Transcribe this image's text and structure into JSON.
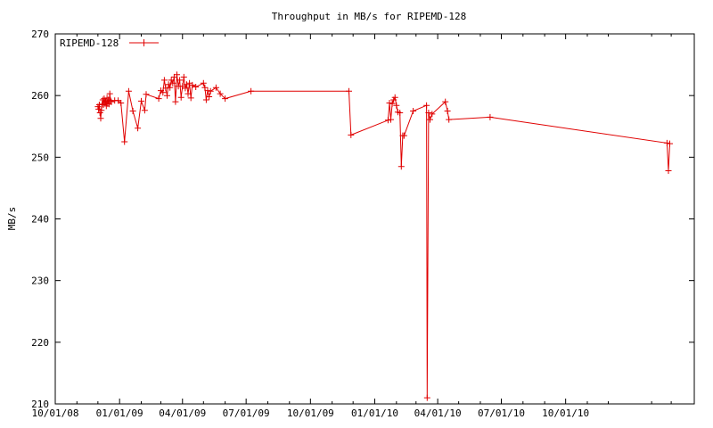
{
  "chart_data": {
    "type": "line",
    "title": "Throughput in MB/s for RIPEMD-128",
    "xlabel": "",
    "ylabel": "MB/s",
    "x_type": "date",
    "xlim": [
      "2008-10-01",
      "2011-04-03"
    ],
    "ylim": [
      210,
      270
    ],
    "yticks": [
      210,
      220,
      230,
      240,
      250,
      260,
      270
    ],
    "xticks": [
      {
        "date": "2008-10-01",
        "label": "10/01/08"
      },
      {
        "date": "2009-01-01",
        "label": "01/01/09"
      },
      {
        "date": "2009-04-01",
        "label": "04/01/09"
      },
      {
        "date": "2009-07-01",
        "label": "07/01/09"
      },
      {
        "date": "2009-10-01",
        "label": "10/01/09"
      },
      {
        "date": "2010-01-01",
        "label": "01/01/10"
      },
      {
        "date": "2010-04-01",
        "label": "04/01/10"
      },
      {
        "date": "2010-07-01",
        "label": "07/01/10"
      },
      {
        "date": "2010-10-01",
        "label": "10/01/10"
      }
    ],
    "grid": false,
    "legend": "top-left",
    "series": [
      {
        "name": "RIPEMD-128",
        "color": "#e00000",
        "marker": "plus",
        "points": [
          [
            "2008-12-01",
            258.2
          ],
          [
            "2008-12-02",
            257.8
          ],
          [
            "2008-12-03",
            258.5
          ],
          [
            "2008-12-04",
            257.2
          ],
          [
            "2008-12-05",
            256.3
          ],
          [
            "2008-12-06",
            257.6
          ],
          [
            "2008-12-07",
            258.6
          ],
          [
            "2008-12-08",
            259.3
          ],
          [
            "2008-12-09",
            258.5
          ],
          [
            "2008-12-10",
            259.5
          ],
          [
            "2008-12-11",
            258.9
          ],
          [
            "2008-12-12",
            259.1
          ],
          [
            "2008-12-13",
            258.3
          ],
          [
            "2008-12-14",
            259.6
          ],
          [
            "2008-12-15",
            258.7
          ],
          [
            "2008-12-16",
            259.3
          ],
          [
            "2008-12-17",
            258.6
          ],
          [
            "2008-12-18",
            260.3
          ],
          [
            "2008-12-19",
            259.2
          ],
          [
            "2008-12-20",
            259.0
          ],
          [
            "2008-12-25",
            259.2
          ],
          [
            "2008-12-30",
            259.2
          ],
          [
            "2009-01-03",
            258.8
          ],
          [
            "2009-01-08",
            252.5
          ],
          [
            "2009-01-14",
            260.7
          ],
          [
            "2009-01-20",
            257.5
          ],
          [
            "2009-01-27",
            254.7
          ],
          [
            "2009-02-01",
            259.1
          ],
          [
            "2009-02-06",
            257.6
          ],
          [
            "2009-02-08",
            260.2
          ],
          [
            "2009-02-26",
            259.5
          ],
          [
            "2009-03-01",
            260.8
          ],
          [
            "2009-03-04",
            260.5
          ],
          [
            "2009-03-06",
            262.5
          ],
          [
            "2009-03-08",
            261.2
          ],
          [
            "2009-03-10",
            260.0
          ],
          [
            "2009-03-12",
            261.8
          ],
          [
            "2009-03-14",
            261.3
          ],
          [
            "2009-03-16",
            262.5
          ],
          [
            "2009-03-18",
            262.0
          ],
          [
            "2009-03-20",
            263.0
          ],
          [
            "2009-03-22",
            259.0
          ],
          [
            "2009-03-24",
            263.4
          ],
          [
            "2009-03-26",
            261.5
          ],
          [
            "2009-03-28",
            262.5
          ],
          [
            "2009-03-30",
            259.7
          ],
          [
            "2009-04-01",
            261.5
          ],
          [
            "2009-04-03",
            263.0
          ],
          [
            "2009-04-05",
            261.2
          ],
          [
            "2009-04-07",
            261.8
          ],
          [
            "2009-04-09",
            260.3
          ],
          [
            "2009-04-11",
            262.0
          ],
          [
            "2009-04-13",
            259.6
          ],
          [
            "2009-04-15",
            261.7
          ],
          [
            "2009-04-20",
            261.4
          ],
          [
            "2009-05-01",
            262.0
          ],
          [
            "2009-05-03",
            261.3
          ],
          [
            "2009-05-05",
            259.3
          ],
          [
            "2009-05-07",
            260.8
          ],
          [
            "2009-05-09",
            259.8
          ],
          [
            "2009-05-11",
            260.7
          ],
          [
            "2009-05-19",
            261.3
          ],
          [
            "2009-05-25",
            260.3
          ],
          [
            "2009-06-01",
            259.5
          ],
          [
            "2009-07-08",
            260.7
          ],
          [
            "2009-11-25",
            260.7
          ],
          [
            "2009-11-28",
            253.6
          ],
          [
            "2010-01-20",
            256.0
          ],
          [
            "2010-01-22",
            258.8
          ],
          [
            "2010-01-24",
            256.1
          ],
          [
            "2010-01-26",
            258.7
          ],
          [
            "2010-01-28",
            259.3
          ],
          [
            "2010-01-30",
            259.7
          ],
          [
            "2010-02-01",
            258.4
          ],
          [
            "2010-02-03",
            257.3
          ],
          [
            "2010-02-06",
            257.2
          ],
          [
            "2010-02-08",
            248.5
          ],
          [
            "2010-02-10",
            253.5
          ],
          [
            "2010-02-12",
            253.5
          ],
          [
            "2010-02-25",
            257.5
          ],
          [
            "2010-03-16",
            258.4
          ],
          [
            "2010-03-17",
            211.0
          ],
          [
            "2010-03-19",
            257.2
          ],
          [
            "2010-03-21",
            256.1
          ],
          [
            "2010-03-24",
            257.0
          ],
          [
            "2010-04-12",
            259.0
          ],
          [
            "2010-04-15",
            257.5
          ],
          [
            "2010-04-17",
            256.1
          ],
          [
            "2010-06-15",
            256.5
          ],
          [
            "2011-02-23",
            252.3
          ],
          [
            "2011-02-25",
            247.8
          ],
          [
            "2011-02-27",
            252.2
          ]
        ]
      }
    ]
  }
}
